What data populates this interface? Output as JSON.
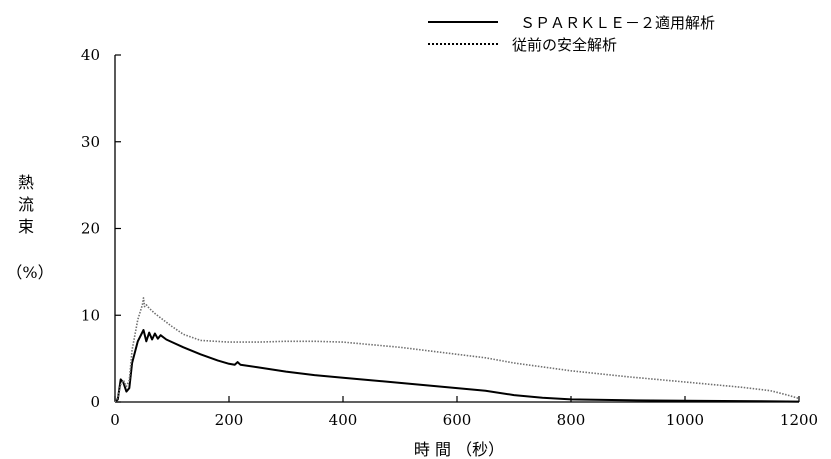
{
  "chart_data": {
    "type": "line",
    "title": "",
    "xlabel": "時 間 （秒）",
    "ylabel_lines": [
      "熱",
      "流",
      "束"
    ],
    "ylabel_unit": "（%）",
    "xlim": [
      0,
      1200
    ],
    "ylim": [
      0,
      40
    ],
    "x_ticks": [
      0,
      200,
      400,
      600,
      800,
      1000,
      1200
    ],
    "x_tick_labels": [
      "0",
      "200",
      "400",
      "600",
      "800",
      "1000",
      "1200"
    ],
    "y_ticks": [
      0,
      10,
      20,
      30,
      40
    ],
    "y_tick_labels": [
      "0",
      "10",
      "20",
      "30",
      "40"
    ],
    "grid": false,
    "legend_position": "top-right",
    "series": [
      {
        "name": "ＳＰＡＲＫＬＥ－２適用解析",
        "style": "solid",
        "color": "#000000",
        "x": [
          0,
          5,
          10,
          15,
          20,
          25,
          30,
          40,
          50,
          55,
          60,
          65,
          70,
          75,
          80,
          90,
          100,
          120,
          150,
          180,
          200,
          210,
          215,
          220,
          250,
          300,
          350,
          400,
          500,
          600,
          650,
          700,
          750,
          800,
          900,
          1000,
          1100,
          1200
        ],
        "y": [
          0,
          0.3,
          2.6,
          2.2,
          1.2,
          1.6,
          4.5,
          7.0,
          8.3,
          7.0,
          8.0,
          7.2,
          7.9,
          7.3,
          7.7,
          7.2,
          6.9,
          6.3,
          5.5,
          4.8,
          4.4,
          4.3,
          4.6,
          4.3,
          4.0,
          3.5,
          3.1,
          2.8,
          2.2,
          1.6,
          1.3,
          0.8,
          0.5,
          0.3,
          0.2,
          0.15,
          0.1,
          0.05
        ]
      },
      {
        "name": "従前の安全解析",
        "style": "dotted",
        "color": "#707070",
        "x": [
          0,
          5,
          10,
          15,
          20,
          25,
          30,
          40,
          48,
          50,
          52,
          55,
          60,
          65,
          70,
          80,
          100,
          120,
          150,
          200,
          250,
          300,
          350,
          400,
          450,
          500,
          550,
          600,
          650,
          700,
          800,
          900,
          1000,
          1100,
          1150,
          1180,
          1200
        ],
        "y": [
          0,
          0.5,
          2.0,
          2.5,
          1.8,
          2.5,
          6.0,
          9.5,
          11.2,
          12.0,
          11.0,
          11.2,
          10.8,
          10.5,
          10.2,
          9.7,
          8.7,
          7.8,
          7.1,
          6.9,
          6.9,
          7.0,
          7.0,
          6.9,
          6.6,
          6.3,
          5.9,
          5.5,
          5.1,
          4.5,
          3.6,
          2.9,
          2.3,
          1.7,
          1.3,
          0.8,
          0.4
        ]
      }
    ]
  }
}
